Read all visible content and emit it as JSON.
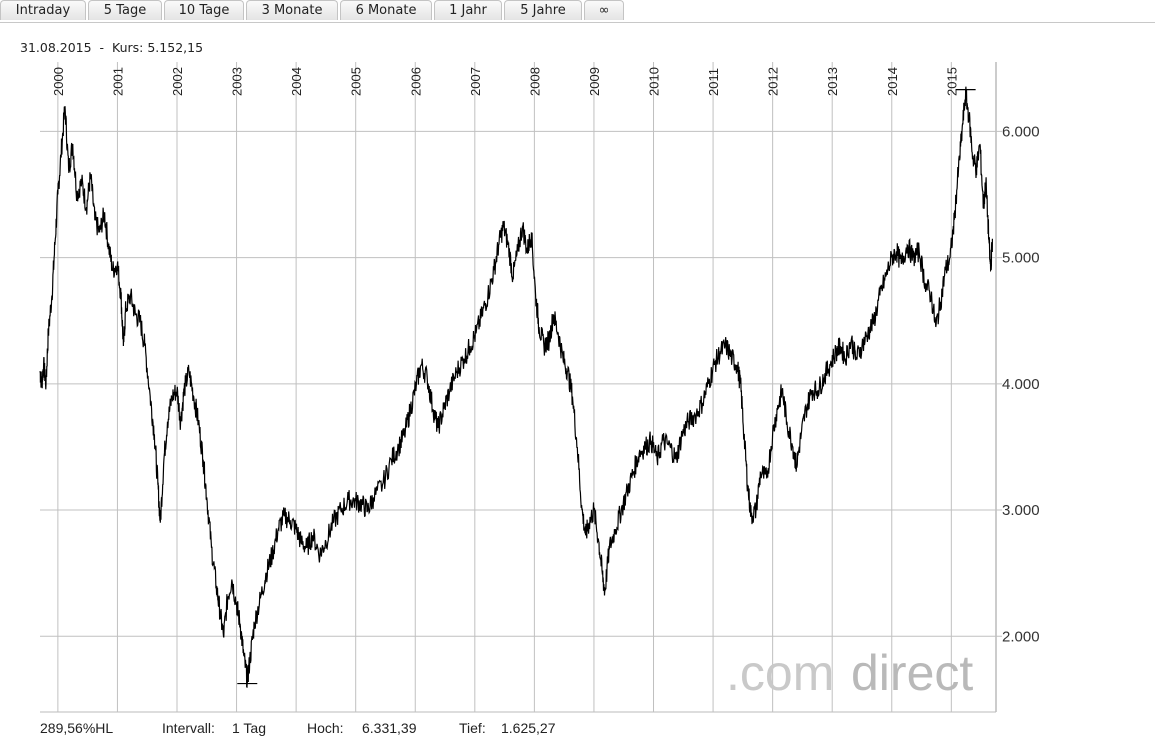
{
  "tabs": [
    {
      "label": "Intraday"
    },
    {
      "label": "5 Tage"
    },
    {
      "label": "10 Tage"
    },
    {
      "label": "3 Monate"
    },
    {
      "label": "6 Monate"
    },
    {
      "label": "1 Jahr"
    },
    {
      "label": "5 Jahre"
    },
    {
      "label": "∞"
    }
  ],
  "info": {
    "date": "31.08.2015",
    "separator": "-",
    "kurs_label": "Kurs:",
    "kurs_value": "5.152,15"
  },
  "footer": {
    "scale": "289,56%HL",
    "interval_label": "Intervall:",
    "interval_value": "1 Tag",
    "high_label": "Hoch:",
    "high_value": "6.331,39",
    "low_label": "Tief:",
    "low_value": "1.625,27"
  },
  "watermark": {
    "text_light": ".com",
    "text_dark": "direct"
  },
  "colors": {
    "line": "#000000",
    "grid": "#c0c0c0",
    "watermark": "#c9c9c9"
  },
  "chart_data": {
    "type": "line",
    "title": "",
    "xlabel": "",
    "ylabel": "",
    "x_ticks": [
      "2000",
      "2001",
      "2002",
      "2003",
      "2004",
      "2005",
      "2006",
      "2007",
      "2008",
      "2009",
      "2010",
      "2011",
      "2012",
      "2013",
      "2014",
      "2015"
    ],
    "y_ticks": [
      "2.000",
      "3.000",
      "4.000",
      "5.000",
      "6.000"
    ],
    "y_tick_values": [
      2000,
      3000,
      4000,
      5000,
      6000
    ],
    "ylim": [
      1400,
      6550
    ],
    "xlim": [
      1999.7,
      2015.75
    ],
    "grid": true,
    "series": [
      {
        "name": "",
        "points": [
          [
            1999.7,
            4100
          ],
          [
            1999.73,
            4000
          ],
          [
            1999.76,
            4150
          ],
          [
            1999.8,
            4000
          ],
          [
            1999.84,
            4400
          ],
          [
            1999.9,
            4700
          ],
          [
            1999.95,
            5100
          ],
          [
            2000.0,
            5500
          ],
          [
            2000.05,
            5800
          ],
          [
            2000.12,
            6200
          ],
          [
            2000.18,
            5700
          ],
          [
            2000.25,
            5900
          ],
          [
            2000.32,
            5500
          ],
          [
            2000.4,
            5600
          ],
          [
            2000.48,
            5400
          ],
          [
            2000.55,
            5650
          ],
          [
            2000.62,
            5300
          ],
          [
            2000.7,
            5200
          ],
          [
            2000.78,
            5350
          ],
          [
            2000.85,
            5100
          ],
          [
            2000.92,
            4900
          ],
          [
            2001.0,
            4950
          ],
          [
            2001.06,
            4700
          ],
          [
            2001.1,
            4300
          ],
          [
            2001.14,
            4600
          ],
          [
            2001.22,
            4700
          ],
          [
            2001.3,
            4550
          ],
          [
            2001.38,
            4500
          ],
          [
            2001.46,
            4300
          ],
          [
            2001.55,
            3900
          ],
          [
            2001.62,
            3600
          ],
          [
            2001.68,
            3200
          ],
          [
            2001.72,
            2900
          ],
          [
            2001.78,
            3400
          ],
          [
            2001.84,
            3700
          ],
          [
            2001.92,
            3900
          ],
          [
            2002.0,
            3950
          ],
          [
            2002.06,
            3700
          ],
          [
            2002.12,
            3950
          ],
          [
            2002.2,
            4100
          ],
          [
            2002.28,
            3900
          ],
          [
            2002.36,
            3700
          ],
          [
            2002.44,
            3400
          ],
          [
            2002.5,
            3100
          ],
          [
            2002.58,
            2700
          ],
          [
            2002.66,
            2400
          ],
          [
            2002.72,
            2200
          ],
          [
            2002.78,
            2000
          ],
          [
            2002.85,
            2300
          ],
          [
            2002.92,
            2450
          ],
          [
            2003.0,
            2250
          ],
          [
            2003.06,
            2100
          ],
          [
            2003.12,
            1850
          ],
          [
            2003.18,
            1650
          ],
          [
            2003.22,
            1800
          ],
          [
            2003.3,
            2100
          ],
          [
            2003.4,
            2300
          ],
          [
            2003.5,
            2500
          ],
          [
            2003.6,
            2650
          ],
          [
            2003.7,
            2850
          ],
          [
            2003.8,
            2950
          ],
          [
            2003.9,
            2920
          ],
          [
            2004.0,
            2850
          ],
          [
            2004.08,
            2750
          ],
          [
            2004.18,
            2700
          ],
          [
            2004.28,
            2800
          ],
          [
            2004.4,
            2650
          ],
          [
            2004.5,
            2750
          ],
          [
            2004.62,
            2900
          ],
          [
            2004.75,
            3000
          ],
          [
            2004.88,
            3080
          ],
          [
            2005.0,
            3070
          ],
          [
            2005.1,
            3050
          ],
          [
            2005.2,
            3000
          ],
          [
            2005.3,
            3100
          ],
          [
            2005.45,
            3200
          ],
          [
            2005.6,
            3400
          ],
          [
            2005.72,
            3500
          ],
          [
            2005.82,
            3600
          ],
          [
            2005.92,
            3800
          ],
          [
            2006.02,
            4000
          ],
          [
            2006.1,
            4150
          ],
          [
            2006.2,
            4050
          ],
          [
            2006.3,
            3800
          ],
          [
            2006.38,
            3650
          ],
          [
            2006.48,
            3800
          ],
          [
            2006.58,
            3950
          ],
          [
            2006.7,
            4100
          ],
          [
            2006.82,
            4200
          ],
          [
            2006.92,
            4300
          ],
          [
            2007.02,
            4400
          ],
          [
            2007.12,
            4550
          ],
          [
            2007.22,
            4700
          ],
          [
            2007.32,
            4900
          ],
          [
            2007.4,
            5100
          ],
          [
            2007.48,
            5250
          ],
          [
            2007.56,
            5100
          ],
          [
            2007.64,
            4850
          ],
          [
            2007.72,
            5050
          ],
          [
            2007.8,
            5250
          ],
          [
            2007.88,
            5050
          ],
          [
            2007.95,
            5200
          ],
          [
            2008.02,
            4700
          ],
          [
            2008.08,
            4450
          ],
          [
            2008.16,
            4300
          ],
          [
            2008.25,
            4350
          ],
          [
            2008.32,
            4550
          ],
          [
            2008.4,
            4400
          ],
          [
            2008.48,
            4200
          ],
          [
            2008.56,
            4100
          ],
          [
            2008.64,
            3900
          ],
          [
            2008.72,
            3500
          ],
          [
            2008.8,
            3000
          ],
          [
            2008.86,
            2800
          ],
          [
            2008.92,
            2900
          ],
          [
            2009.0,
            3000
          ],
          [
            2009.08,
            2750
          ],
          [
            2009.14,
            2500
          ],
          [
            2009.18,
            2350
          ],
          [
            2009.26,
            2700
          ],
          [
            2009.36,
            2850
          ],
          [
            2009.46,
            3000
          ],
          [
            2009.56,
            3150
          ],
          [
            2009.66,
            3300
          ],
          [
            2009.76,
            3450
          ],
          [
            2009.86,
            3500
          ],
          [
            2009.96,
            3550
          ],
          [
            2010.06,
            3400
          ],
          [
            2010.16,
            3550
          ],
          [
            2010.28,
            3500
          ],
          [
            2010.38,
            3400
          ],
          [
            2010.48,
            3600
          ],
          [
            2010.58,
            3700
          ],
          [
            2010.7,
            3750
          ],
          [
            2010.82,
            3850
          ],
          [
            2010.92,
            4000
          ],
          [
            2011.02,
            4150
          ],
          [
            2011.12,
            4250
          ],
          [
            2011.22,
            4300
          ],
          [
            2011.32,
            4200
          ],
          [
            2011.4,
            4150
          ],
          [
            2011.46,
            4000
          ],
          [
            2011.52,
            3600
          ],
          [
            2011.58,
            3200
          ],
          [
            2011.64,
            2950
          ],
          [
            2011.72,
            3000
          ],
          [
            2011.8,
            3300
          ],
          [
            2011.9,
            3250
          ],
          [
            2012.0,
            3600
          ],
          [
            2012.08,
            3800
          ],
          [
            2012.16,
            3950
          ],
          [
            2012.24,
            3700
          ],
          [
            2012.34,
            3500
          ],
          [
            2012.4,
            3350
          ],
          [
            2012.48,
            3600
          ],
          [
            2012.56,
            3800
          ],
          [
            2012.66,
            3950
          ],
          [
            2012.76,
            3950
          ],
          [
            2012.86,
            4050
          ],
          [
            2012.96,
            4150
          ],
          [
            2013.06,
            4250
          ],
          [
            2013.14,
            4300
          ],
          [
            2013.22,
            4200
          ],
          [
            2013.32,
            4350
          ],
          [
            2013.4,
            4200
          ],
          [
            2013.5,
            4300
          ],
          [
            2013.6,
            4400
          ],
          [
            2013.7,
            4500
          ],
          [
            2013.8,
            4700
          ],
          [
            2013.9,
            4850
          ],
          [
            2014.0,
            5000
          ],
          [
            2014.08,
            5050
          ],
          [
            2014.16,
            4950
          ],
          [
            2014.26,
            5100
          ],
          [
            2014.36,
            5000
          ],
          [
            2014.46,
            5050
          ],
          [
            2014.56,
            4800
          ],
          [
            2014.66,
            4700
          ],
          [
            2014.74,
            4450
          ],
          [
            2014.82,
            4650
          ],
          [
            2014.9,
            4900
          ],
          [
            2014.98,
            5000
          ],
          [
            2015.05,
            5300
          ],
          [
            2015.12,
            5700
          ],
          [
            2015.18,
            6000
          ],
          [
            2015.24,
            6300
          ],
          [
            2015.3,
            6100
          ],
          [
            2015.36,
            5800
          ],
          [
            2015.42,
            5700
          ],
          [
            2015.48,
            5900
          ],
          [
            2015.54,
            5400
          ],
          [
            2015.58,
            5600
          ],
          [
            2015.63,
            5150
          ],
          [
            2015.66,
            4900
          ],
          [
            2015.69,
            5150
          ]
        ]
      }
    ],
    "annotations": [
      {
        "type": "max-marker",
        "x": 2015.24,
        "y": 6331.39
      },
      {
        "type": "min-marker",
        "x": 2003.18,
        "y": 1625.27
      }
    ]
  }
}
